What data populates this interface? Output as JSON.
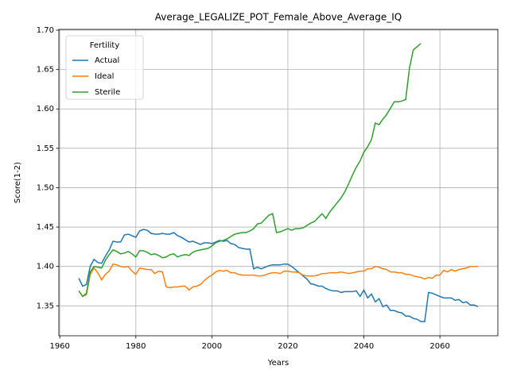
{
  "chart_data": {
    "type": "line",
    "title": "Average_LEGALIZE_POT_Female_Above_Average_IQ",
    "x_label": "Years",
    "y_label": "Score(1-2)",
    "legend_title": "Fertility",
    "legend": "upper left",
    "grid": true,
    "x": [
      1965,
      1966,
      1967,
      1968,
      1969,
      1970,
      1971,
      1972,
      1973,
      1974,
      1975,
      1976,
      1977,
      1978,
      1979,
      1980,
      1981,
      1982,
      1983,
      1984,
      1985,
      1986,
      1987,
      1988,
      1989,
      1990,
      1991,
      1992,
      1993,
      1994,
      1995,
      1996,
      1997,
      1998,
      1999,
      2000,
      2001,
      2002,
      2003,
      2004,
      2005,
      2006,
      2007,
      2008,
      2009,
      2010,
      2011,
      2012,
      2013,
      2014,
      2015,
      2016,
      2017,
      2018,
      2019,
      2020,
      2021,
      2022,
      2023,
      2024,
      2025,
      2026,
      2027,
      2028,
      2029,
      2030,
      2031,
      2032,
      2033,
      2034,
      2035,
      2036,
      2037,
      2038,
      2039,
      2040,
      2041,
      2042,
      2043,
      2044,
      2045,
      2046,
      2047,
      2048,
      2049,
      2050,
      2051,
      2052,
      2053,
      2054,
      2055,
      2056,
      2057,
      2058,
      2059,
      2060,
      2061,
      2062,
      2063,
      2064,
      2065,
      2066,
      2067,
      2068,
      2069,
      2070
    ],
    "series": [
      {
        "name": "Actual",
        "color": "#1f77b4",
        "values": [
          1.385,
          1.375,
          1.377,
          1.4,
          1.409,
          1.405,
          1.404,
          1.413,
          1.421,
          1.432,
          1.431,
          1.431,
          1.44,
          1.441,
          1.439,
          1.437,
          1.445,
          1.447,
          1.446,
          1.442,
          1.441,
          1.441,
          1.442,
          1.441,
          1.441,
          1.443,
          1.439,
          1.437,
          1.434,
          1.431,
          1.432,
          1.43,
          1.428,
          1.43,
          1.43,
          1.429,
          1.431,
          1.433,
          1.432,
          1.433,
          1.429,
          1.428,
          1.424,
          1.423,
          1.422,
          1.422,
          1.397,
          1.399,
          1.397,
          1.399,
          1.401,
          1.402,
          1.402,
          1.402,
          1.403,
          1.403,
          1.4,
          1.396,
          1.392,
          1.388,
          1.384,
          1.378,
          1.377,
          1.375,
          1.375,
          1.372,
          1.37,
          1.369,
          1.369,
          1.367,
          1.368,
          1.368,
          1.368,
          1.369,
          1.362,
          1.37,
          1.36,
          1.365,
          1.355,
          1.359,
          1.349,
          1.351,
          1.344,
          1.344,
          1.342,
          1.341,
          1.337,
          1.337,
          1.334,
          1.333,
          1.33,
          1.33,
          1.367,
          1.366,
          1.364,
          1.362,
          1.36,
          1.36,
          1.36,
          1.357,
          1.358,
          1.354,
          1.355,
          1.351,
          1.351,
          1.349
        ]
      },
      {
        "name": "Ideal",
        "color": "#ff7f0e",
        "values": [
          1.369,
          1.362,
          1.364,
          1.39,
          1.398,
          1.392,
          1.383,
          1.39,
          1.394,
          1.403,
          1.402,
          1.4,
          1.399,
          1.4,
          1.394,
          1.39,
          1.398,
          1.397,
          1.396,
          1.396,
          1.391,
          1.394,
          1.393,
          1.374,
          1.373,
          1.374,
          1.374,
          1.375,
          1.375,
          1.37,
          1.374,
          1.375,
          1.377,
          1.382,
          1.386,
          1.389,
          1.393,
          1.395,
          1.394,
          1.395,
          1.392,
          1.392,
          1.39,
          1.389,
          1.389,
          1.389,
          1.389,
          1.388,
          1.388,
          1.389,
          1.391,
          1.392,
          1.392,
          1.391,
          1.394,
          1.394,
          1.393,
          1.393,
          1.392,
          1.389,
          1.388,
          1.388,
          1.388,
          1.389,
          1.391,
          1.391,
          1.392,
          1.392,
          1.392,
          1.393,
          1.392,
          1.391,
          1.392,
          1.393,
          1.394,
          1.394,
          1.397,
          1.397,
          1.4,
          1.399,
          1.397,
          1.396,
          1.393,
          1.393,
          1.392,
          1.392,
          1.39,
          1.39,
          1.388,
          1.387,
          1.386,
          1.384,
          1.386,
          1.385,
          1.389,
          1.389,
          1.395,
          1.393,
          1.396,
          1.394,
          1.396,
          1.397,
          1.398,
          1.4,
          1.4,
          1.4
        ]
      },
      {
        "name": "Sterile",
        "color": "#2ca02c",
        "values": [
          1.369,
          1.362,
          1.366,
          1.393,
          1.4,
          1.399,
          1.398,
          1.408,
          1.415,
          1.421,
          1.419,
          1.416,
          1.417,
          1.419,
          1.416,
          1.412,
          1.42,
          1.42,
          1.418,
          1.415,
          1.416,
          1.414,
          1.411,
          1.412,
          1.415,
          1.416,
          1.412,
          1.414,
          1.415,
          1.414,
          1.418,
          1.42,
          1.421,
          1.422,
          1.423,
          1.426,
          1.43,
          1.432,
          1.433,
          1.435,
          1.438,
          1.441,
          1.442,
          1.443,
          1.443,
          1.445,
          1.448,
          1.454,
          1.455,
          1.46,
          1.465,
          1.467,
          1.443,
          1.444,
          1.446,
          1.448,
          1.446,
          1.448,
          1.448,
          1.449,
          1.452,
          1.455,
          1.457,
          1.462,
          1.467,
          1.461,
          1.469,
          1.475,
          1.481,
          1.487,
          1.495,
          1.505,
          1.516,
          1.526,
          1.534,
          1.545,
          1.552,
          1.561,
          1.582,
          1.58,
          1.587,
          1.593,
          1.601,
          1.609,
          1.609,
          1.61,
          1.612,
          1.652,
          1.675,
          1.679,
          1.683,
          null,
          null,
          null,
          null,
          null,
          null,
          null,
          null,
          null,
          null,
          null,
          null,
          null,
          null,
          null
        ]
      }
    ],
    "xlim": [
      1959.75,
      2075.25
    ],
    "xticks": [
      1960,
      1980,
      2000,
      2020,
      2040,
      2060
    ],
    "ylim": [
      1.312,
      1.701
    ],
    "yticks": [
      1.35,
      {
        "value": 1.4,
        "label": "1.40"
      },
      1.45,
      {
        "value": 1.5,
        "label": "1.50"
      },
      1.55,
      {
        "value": 1.6,
        "label": "1.60"
      },
      1.65,
      {
        "value": 1.7,
        "label": "1.70"
      }
    ]
  }
}
